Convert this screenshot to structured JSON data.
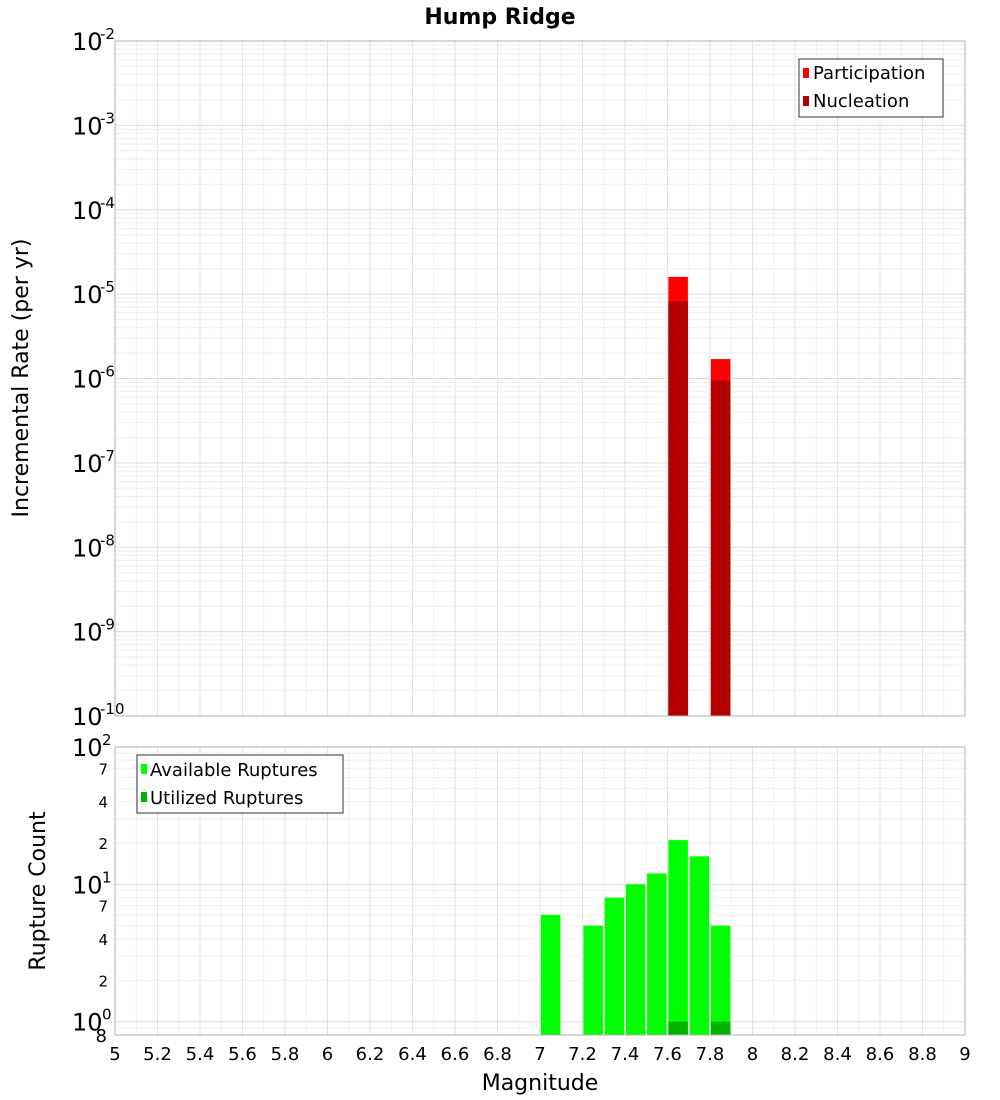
{
  "chart_data": [
    {
      "type": "bar",
      "title": "Hump Ridge",
      "xlabel": "",
      "ylabel": "Incremental Rate (per yr)",
      "yscale": "log",
      "ylim": [
        1e-10,
        0.01
      ],
      "xlim": [
        5,
        9
      ],
      "y_tick_labels": [
        {
          "base": "10",
          "exp": "-10"
        },
        {
          "base": "10",
          "exp": "-9"
        },
        {
          "base": "10",
          "exp": "-8"
        },
        {
          "base": "10",
          "exp": "-7"
        },
        {
          "base": "10",
          "exp": "-6"
        },
        {
          "base": "10",
          "exp": "-5"
        },
        {
          "base": "10",
          "exp": "-4"
        },
        {
          "base": "10",
          "exp": "-3"
        },
        {
          "base": "10",
          "exp": "-2"
        }
      ],
      "grid": true,
      "legend_position": "top-right",
      "series": [
        {
          "name": "Participation",
          "color": "#ff0000",
          "x": [
            7.65,
            7.85
          ],
          "values": [
            1.6e-05,
            1.7e-06
          ]
        },
        {
          "name": "Nucleation",
          "color": "#b30000",
          "x": [
            7.65,
            7.85
          ],
          "values": [
            8.2e-06,
            9.5e-07
          ]
        }
      ]
    },
    {
      "type": "bar",
      "title": "",
      "xlabel": "Magnitude",
      "ylabel": "Rupture Count",
      "yscale": "log",
      "ylim": [
        0.8,
        100
      ],
      "xlim": [
        5,
        9
      ],
      "x_ticks": [
        "5",
        "5.2",
        "5.4",
        "5.6",
        "5.8",
        "6",
        "6.2",
        "6.4",
        "6.6",
        "6.8",
        "7",
        "7.2",
        "7.4",
        "7.6",
        "7.8",
        "8",
        "8.2",
        "8.4",
        "8.6",
        "8.8",
        "9"
      ],
      "y_major_tick_labels": [
        {
          "base": "10",
          "exp": "0"
        },
        {
          "base": "10",
          "exp": "1"
        },
        {
          "base": "10",
          "exp": "2"
        }
      ],
      "y_minor_tick_labels": [
        "8",
        "2",
        "4",
        "7",
        "2",
        "4",
        "7"
      ],
      "grid": true,
      "legend_position": "top-left",
      "series": [
        {
          "name": "Available Ruptures",
          "color": "#00ff00",
          "x": [
            7.05,
            7.25,
            7.35,
            7.45,
            7.55,
            7.65,
            7.75,
            7.85
          ],
          "values": [
            6,
            5,
            8,
            10,
            12,
            21,
            16,
            5
          ]
        },
        {
          "name": "Utilized Ruptures",
          "color": "#00b300",
          "x": [
            7.65,
            7.85
          ],
          "values": [
            1,
            1
          ]
        }
      ]
    }
  ]
}
